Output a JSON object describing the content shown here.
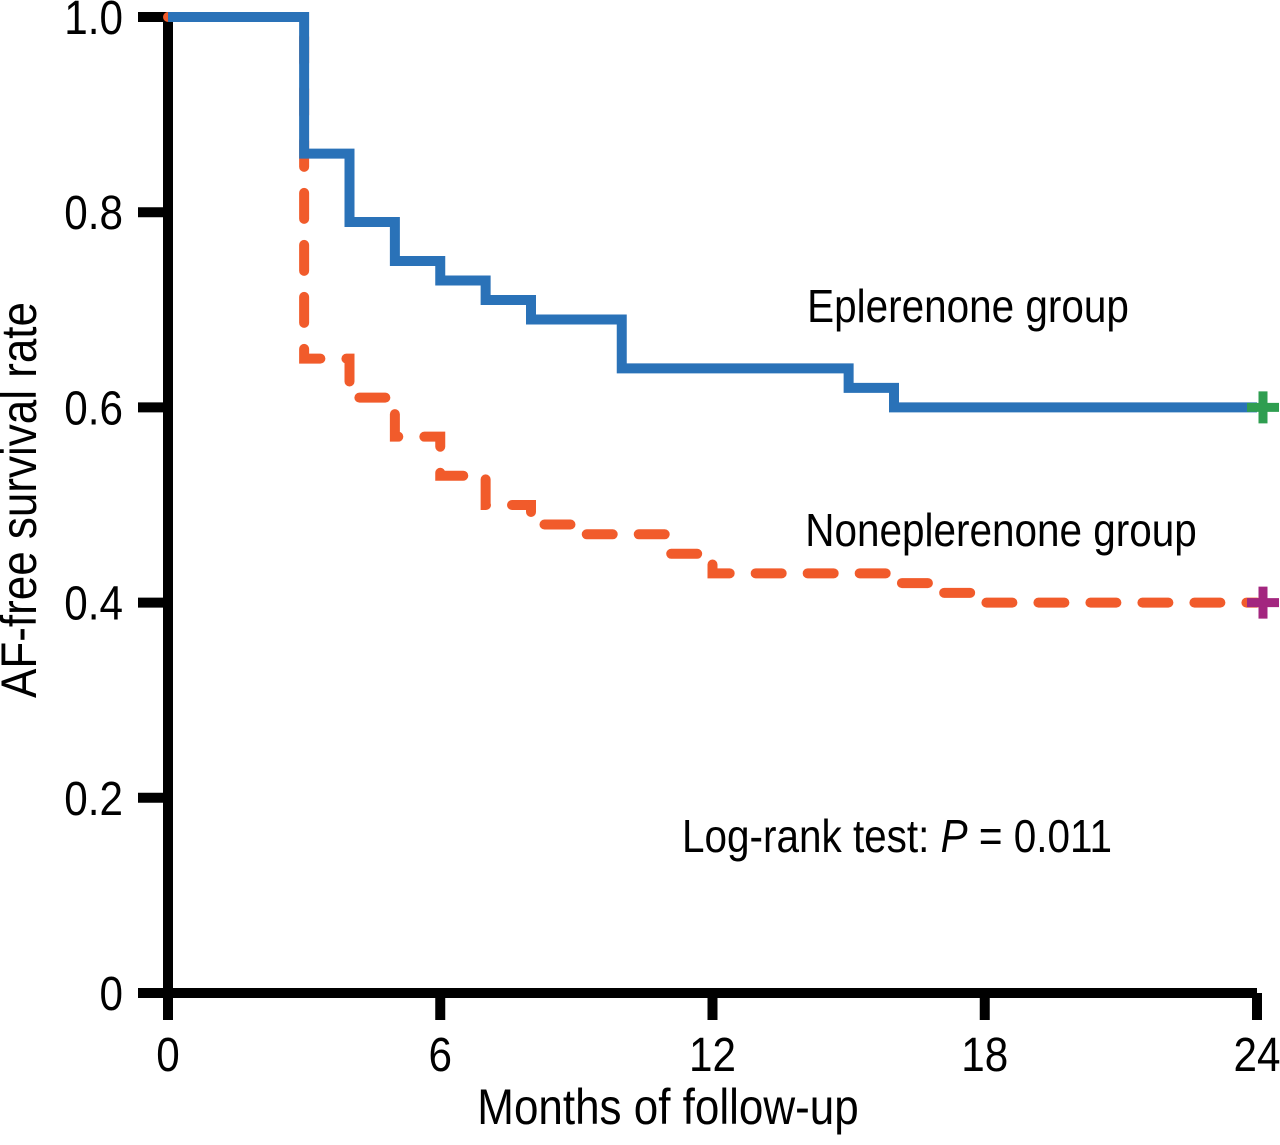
{
  "figure_title": "",
  "chart_data": {
    "type": "line",
    "subtype": "kaplan-meier-step",
    "title": "",
    "xlabel": "Months of follow-up",
    "ylabel": "AF-free survival rate",
    "xlim": [
      0,
      24
    ],
    "ylim": [
      0,
      1.0
    ],
    "x_ticks": [
      0,
      6,
      12,
      18,
      24
    ],
    "x_tick_labels": [
      "0",
      "6",
      "12",
      "18",
      "24"
    ],
    "y_ticks": [
      0,
      0.2,
      0.4,
      0.6,
      0.8,
      1.0
    ],
    "y_tick_labels": [
      "0",
      "0.2",
      "0.4",
      "0.6",
      "0.8",
      "1.0"
    ],
    "grid": "off",
    "legend_position": "inline-labels",
    "axis_color": "#000000",
    "annotation": {
      "prefix": "Log-rank test: ",
      "p_symbol": "P",
      "rest": " = 0.011"
    },
    "series": [
      {
        "name": "Eplerenone group",
        "line_style": "solid",
        "color": "#2a72b8",
        "censor_mark_color": "#2f9e50",
        "censor_at": [
          24,
          0.6
        ],
        "steps": [
          [
            0,
            1.0
          ],
          [
            3,
            0.86
          ],
          [
            4,
            0.79
          ],
          [
            5,
            0.75
          ],
          [
            6,
            0.73
          ],
          [
            7,
            0.71
          ],
          [
            8,
            0.69
          ],
          [
            10,
            0.64
          ],
          [
            15,
            0.62
          ],
          [
            16,
            0.6
          ],
          [
            24,
            0.6
          ]
        ]
      },
      {
        "name": "Noneplerenone group",
        "line_style": "dashed",
        "color": "#f15b2b",
        "censor_mark_color": "#a3267f",
        "censor_at": [
          24,
          0.4
        ],
        "steps": [
          [
            0,
            1.0
          ],
          [
            3,
            0.65
          ],
          [
            4,
            0.61
          ],
          [
            5,
            0.57
          ],
          [
            6,
            0.53
          ],
          [
            7,
            0.5
          ],
          [
            8,
            0.48
          ],
          [
            9,
            0.47
          ],
          [
            11,
            0.45
          ],
          [
            12,
            0.43
          ],
          [
            16,
            0.42
          ],
          [
            17,
            0.41
          ],
          [
            18,
            0.4
          ],
          [
            24,
            0.4
          ]
        ]
      }
    ]
  }
}
